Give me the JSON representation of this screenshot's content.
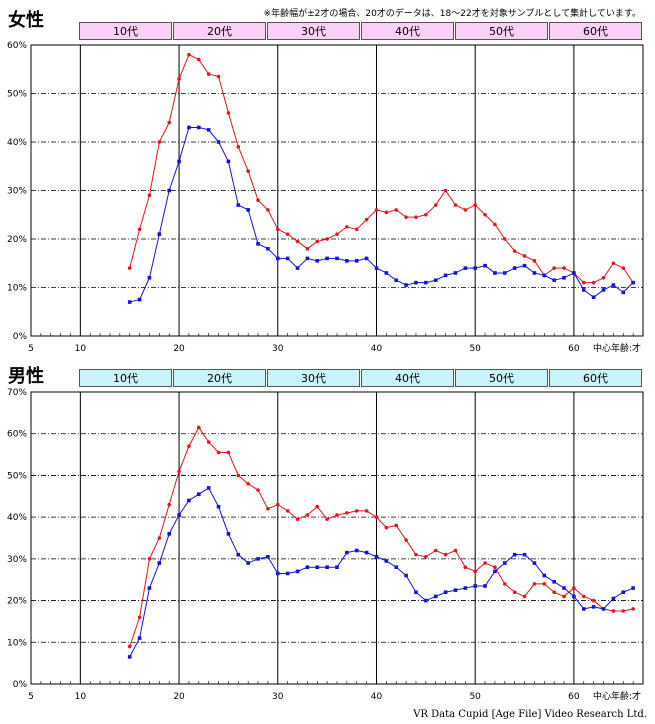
{
  "note": "※年齢幅が±2才の場合、20才のデータは、18～22才を対象サンプルとして集計しています。",
  "source": "VR Data Cupid [Age File] Video Research Ltd.",
  "colors": {
    "female_series": "#e8141c",
    "male_series": "#1414d8",
    "female_band": "#fbd0f6",
    "male_band": "#c8f3f8"
  },
  "chart_data": [
    {
      "type": "line",
      "title": "女性",
      "decades": [
        "10代",
        "20代",
        "30代",
        "40代",
        "50代",
        "60代"
      ],
      "xlabel": "中心年齢:才",
      "xlim": [
        5,
        67
      ],
      "ylim": [
        0,
        60
      ],
      "x_ticks": [
        5,
        10,
        20,
        30,
        40,
        50,
        60
      ],
      "y_ticks": [
        0,
        10,
        20,
        30,
        40,
        50,
        60
      ],
      "y_tick_labels": [
        "0%",
        "10%",
        "20%",
        "30%",
        "40%",
        "50%",
        "60%"
      ],
      "x": [
        15,
        16,
        17,
        18,
        19,
        20,
        21,
        22,
        23,
        24,
        25,
        26,
        27,
        28,
        29,
        30,
        31,
        32,
        33,
        34,
        35,
        36,
        37,
        38,
        39,
        40,
        41,
        42,
        43,
        44,
        45,
        46,
        47,
        48,
        49,
        50,
        51,
        52,
        53,
        54,
        55,
        56,
        57,
        58,
        59,
        60,
        61,
        62,
        63,
        64,
        65,
        66
      ],
      "series": [
        {
          "color": "red",
          "values": [
            14,
            22,
            29,
            40,
            44,
            53,
            58,
            57,
            54,
            53.5,
            46,
            39,
            34,
            28,
            26,
            22,
            21,
            19.5,
            18,
            19.5,
            20,
            21,
            22.5,
            22,
            24,
            26,
            25.5,
            26,
            24.5,
            24.5,
            25,
            27,
            30,
            27,
            26,
            27,
            25,
            23,
            20,
            17.5,
            16.5,
            15.5,
            12.5,
            14,
            14,
            13,
            11,
            11,
            12,
            15,
            14,
            11
          ]
        },
        {
          "color": "blue",
          "values": [
            7,
            7.5,
            12,
            21,
            30,
            36,
            43,
            43,
            42.5,
            40,
            36,
            27,
            26,
            19,
            18,
            16,
            16,
            14,
            16,
            15.5,
            16,
            16,
            15.5,
            15.5,
            16,
            14,
            13,
            11.5,
            10.5,
            11,
            11,
            11.5,
            12.5,
            13,
            14,
            14,
            14.5,
            13,
            13,
            14,
            14.5,
            13,
            12.5,
            11.5,
            12,
            13,
            9.5,
            8,
            9.5,
            10.5,
            9,
            11
          ]
        }
      ]
    },
    {
      "type": "line",
      "title": "男性",
      "decades": [
        "10代",
        "20代",
        "30代",
        "40代",
        "50代",
        "60代"
      ],
      "xlabel": "中心年齢:才",
      "xlim": [
        5,
        67
      ],
      "ylim": [
        0,
        70
      ],
      "x_ticks": [
        5,
        10,
        20,
        30,
        40,
        50,
        60
      ],
      "y_ticks": [
        0,
        10,
        20,
        30,
        40,
        50,
        60,
        70
      ],
      "y_tick_labels": [
        "0%",
        "10%",
        "20%",
        "30%",
        "40%",
        "50%",
        "60%",
        "70%"
      ],
      "x": [
        15,
        16,
        17,
        18,
        19,
        20,
        21,
        22,
        23,
        24,
        25,
        26,
        27,
        28,
        29,
        30,
        31,
        32,
        33,
        34,
        35,
        36,
        37,
        38,
        39,
        40,
        41,
        42,
        43,
        44,
        45,
        46,
        47,
        48,
        49,
        50,
        51,
        52,
        53,
        54,
        55,
        56,
        57,
        58,
        59,
        60,
        61,
        62,
        63,
        64,
        65,
        66
      ],
      "series": [
        {
          "color": "red",
          "values": [
            9,
            16,
            30,
            35,
            43,
            51,
            57,
            61.5,
            58,
            55.5,
            55.5,
            50,
            48,
            46.5,
            42,
            43,
            41.5,
            39.5,
            40.5,
            42.5,
            39.5,
            40.5,
            41,
            41.5,
            41.5,
            40,
            37.5,
            38,
            34.5,
            31,
            30.5,
            32,
            31,
            32,
            28,
            27,
            29,
            28,
            24,
            22,
            21,
            24,
            24,
            22,
            21,
            23,
            21,
            20,
            18,
            17.5,
            17.5,
            18
          ]
        },
        {
          "color": "blue",
          "values": [
            6.5,
            11,
            23,
            29,
            36,
            40.5,
            44,
            45.5,
            47,
            42.5,
            36,
            31,
            29,
            30,
            30.5,
            26.5,
            26.5,
            27,
            28,
            28,
            28,
            28,
            31.5,
            32,
            31.5,
            30.5,
            29.5,
            28,
            26,
            22,
            20,
            21,
            22,
            22.5,
            23,
            23.5,
            23.5,
            27,
            29,
            31,
            31,
            29,
            26,
            24.5,
            23,
            21,
            18,
            18.5,
            18,
            20.5,
            22,
            23
          ]
        }
      ]
    }
  ]
}
